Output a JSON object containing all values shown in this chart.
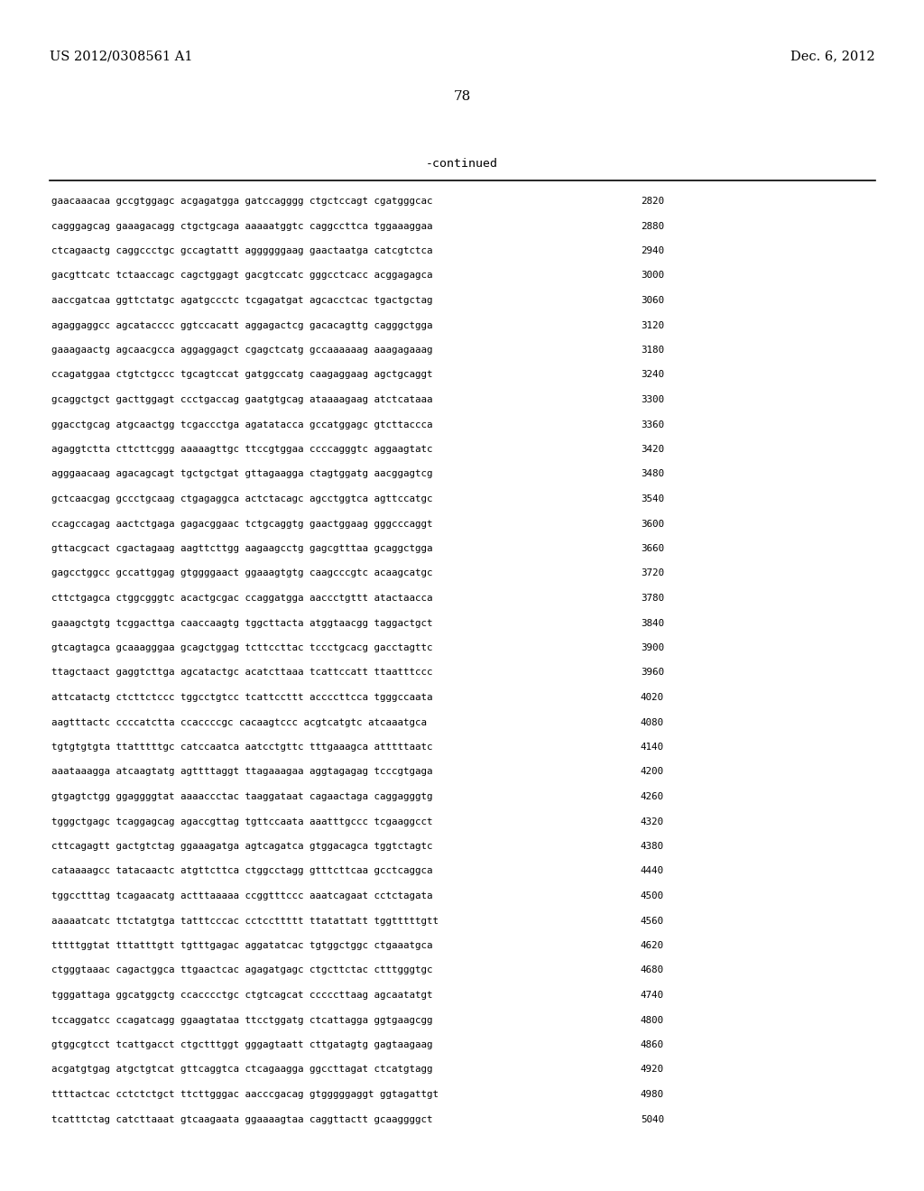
{
  "header_left": "US 2012/0308561 A1",
  "header_right": "Dec. 6, 2012",
  "page_number": "78",
  "continued_label": "-continued",
  "background_color": "#ffffff",
  "text_color": "#000000",
  "font_size_header": 10.5,
  "font_size_body": 7.8,
  "font_size_page": 11,
  "font_size_continued": 9.5,
  "sequence_lines": [
    [
      "gaacaaacaa gccgtggagc acgagatgga gatccagggg ctgctccagt cgatgggcac",
      "2820"
    ],
    [
      "cagggagcag gaaagacagg ctgctgcaga aaaaatggtc caggccttca tggaaaggaa",
      "2880"
    ],
    [
      "ctcagaactg caggccctgc gccagtattt aggggggaag gaactaatga catcgtctca",
      "2940"
    ],
    [
      "gacgttcatc tctaaccagc cagctggagt gacgtccatc gggcctcacc acggagagca",
      "3000"
    ],
    [
      "aaccgatcaa ggttctatgc agatgccctc tcgagatgat agcacctcac tgactgctag",
      "3060"
    ],
    [
      "agaggaggcc agcatacccc ggtccacatt aggagactcg gacacagttg cagggctgga",
      "3120"
    ],
    [
      "gaaagaactg agcaacgcca aggaggagct cgagctcatg gccaaaaaag aaagagaaag",
      "3180"
    ],
    [
      "ccagatggaa ctgtctgccc tgcagtccat gatggccatg caagaggaag agctgcaggt",
      "3240"
    ],
    [
      "gcaggctgct gacttggagt ccctgaccag gaatgtgcag ataaaagaag atctcataaa",
      "3300"
    ],
    [
      "ggacctgcag atgcaactgg tcgaccctga agatatacca gccatggagc gtcttaccca",
      "3360"
    ],
    [
      "agaggtctta cttcttcggg aaaaagttgc ttccgtggaa ccccagggtc aggaagtatc",
      "3420"
    ],
    [
      "agggaacaag agacagcagt tgctgctgat gttagaagga ctagtggatg aacggagtcg",
      "3480"
    ],
    [
      "gctcaacgag gccctgcaag ctgagaggca actctacagc agcctggtca agttccatgc",
      "3540"
    ],
    [
      "ccagccagag aactctgaga gagacggaac tctgcaggtg gaactggaag gggcccaggt",
      "3600"
    ],
    [
      "gttacgcact cgactagaag aagttcttgg aagaagcctg gagcgtttaa gcaggctgga",
      "3660"
    ],
    [
      "gagcctggcc gccattggag gtggggaact ggaaagtgtg caagcccgtc acaagcatgc",
      "3720"
    ],
    [
      "cttctgagca ctggcgggtc acactgcgac ccaggatgga aaccctgttt atactaacca",
      "3780"
    ],
    [
      "gaaagctgtg tcggacttga caaccaagtg tggcttacta atggtaacgg taggactgct",
      "3840"
    ],
    [
      "gtcagtagca gcaaagggaa gcagctggag tcttccttac tccctgcacg gacctagttc",
      "3900"
    ],
    [
      "ttagctaact gaggtcttga agcatactgc acatcttaaa tcattccatt ttaatttccc",
      "3960"
    ],
    [
      "attcatactg ctcttctccc tggcctgtcc tcattccttt accccttcca tgggccaata",
      "4020"
    ],
    [
      "aagtttactc ccccatctta ccaccccgc cacaagtccc acgtcatgtc atcaaatgca",
      "4080"
    ],
    [
      "tgtgtgtgta ttatttttgc catccaatca aatcctgttc tttgaaagca atttttaatc",
      "4140"
    ],
    [
      "aaataaagga atcaagtatg agttttaggt ttagaaagaa aggtagagag tcccgtgaga",
      "4200"
    ],
    [
      "gtgagtctgg ggaggggtat aaaaccctac taaggataat cagaactaga caggagggtg",
      "4260"
    ],
    [
      "tgggctgagc tcaggagcag agaccgttag tgttccaata aaatttgccc tcgaaggcct",
      "4320"
    ],
    [
      "cttcagagtt gactgtctag ggaaagatga agtcagatca gtggacagca tggtctagtc",
      "4380"
    ],
    [
      "cataaaagcc tatacaactc atgttcttca ctggcctagg gtttcttcaa gcctcaggca",
      "4440"
    ],
    [
      "tggcctttag tcagaacatg actttaaaaa ccggtttccc aaatcagaat cctctagata",
      "4500"
    ],
    [
      "aaaaatcatc ttctatgtga tatttcccac cctccttttt ttatattatt tggtttttgtt",
      "4560"
    ],
    [
      "tttttggtat tttatttgtt tgtttgagac aggatatcac tgtggctggc ctgaaatgca",
      "4620"
    ],
    [
      "ctgggtaaac cagactggca ttgaactcac agagatgagc ctgcttctac ctttgggtgc",
      "4680"
    ],
    [
      "tgggattaga ggcatggctg ccacccctgc ctgtcagcat cccccttaag agcaatatgt",
      "4740"
    ],
    [
      "tccaggatcc ccagatcagg ggaagtataa ttcctggatg ctcattagga ggtgaagcgg",
      "4800"
    ],
    [
      "gtggcgtcct tcattgacct ctgctttggt gggagtaatt cttgatagtg gagtaagaag",
      "4860"
    ],
    [
      "acgatgtgag atgctgtcat gttcaggtca ctcagaagga ggccttagat ctcatgtagg",
      "4920"
    ],
    [
      "ttttactcac cctctctgct ttcttgggac aacccgacag gtgggggaggt ggtagattgt",
      "4980"
    ],
    [
      "tcatttctag catcttaaat gtcaagaata ggaaaagtaa caggttactt gcaaggggct",
      "5040"
    ]
  ]
}
